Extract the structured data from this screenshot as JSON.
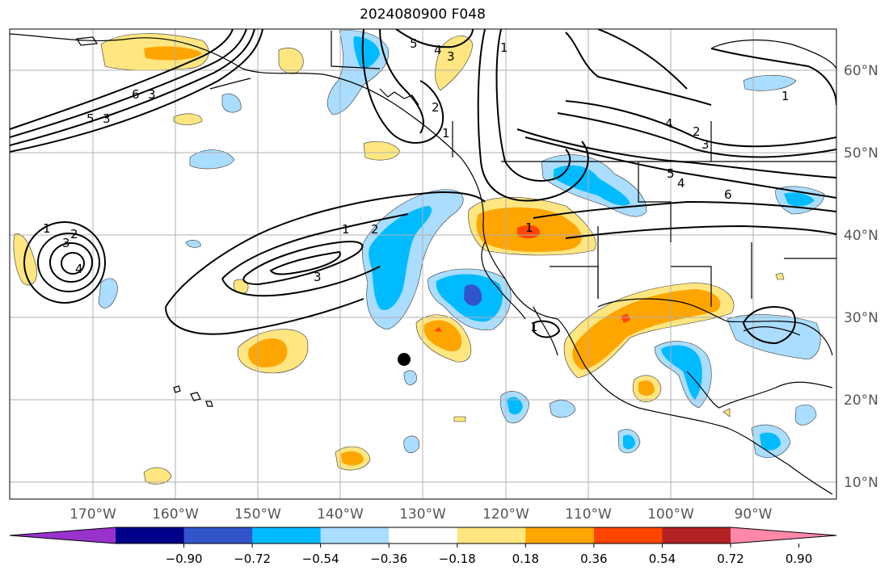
{
  "title": "2024080900 F048",
  "map": {
    "lat_labels": [
      "60°N",
      "50°N",
      "40°N",
      "30°N",
      "20°N",
      "10°N"
    ],
    "lon_labels": [
      "170°W",
      "160°W",
      "150°W",
      "140°W",
      "130°W",
      "120°W",
      "110°W",
      "100°W",
      "90°W"
    ],
    "contour_labels": [
      "6",
      "5",
      "3",
      "5",
      "4",
      "3",
      "2",
      "1",
      "1",
      "2",
      "3",
      "4",
      "1",
      "2",
      "3",
      "4",
      "1",
      "5",
      "4",
      "6",
      "1",
      "1",
      "4",
      "3",
      "1",
      "2",
      "3"
    ]
  },
  "colorbar": {
    "ticks": [
      "−0.90",
      "−0.72",
      "−0.54",
      "−0.36",
      "−0.18",
      "0.18",
      "0.36",
      "0.54",
      "0.72",
      "0.90"
    ],
    "colors": [
      "#9933cc",
      "#000088",
      "#3355cc",
      "#00bbff",
      "#aaddff",
      "#ffffff",
      "#ffe680",
      "#ffa500",
      "#ff4500",
      "#b22222",
      "#ff88aa"
    ]
  },
  "colors": {
    "light_blue": "#aaddff",
    "cyan": "#00bbff",
    "blue": "#3355cc",
    "yellow": "#ffe680",
    "orange": "#ffa500",
    "red": "#ff4500"
  }
}
